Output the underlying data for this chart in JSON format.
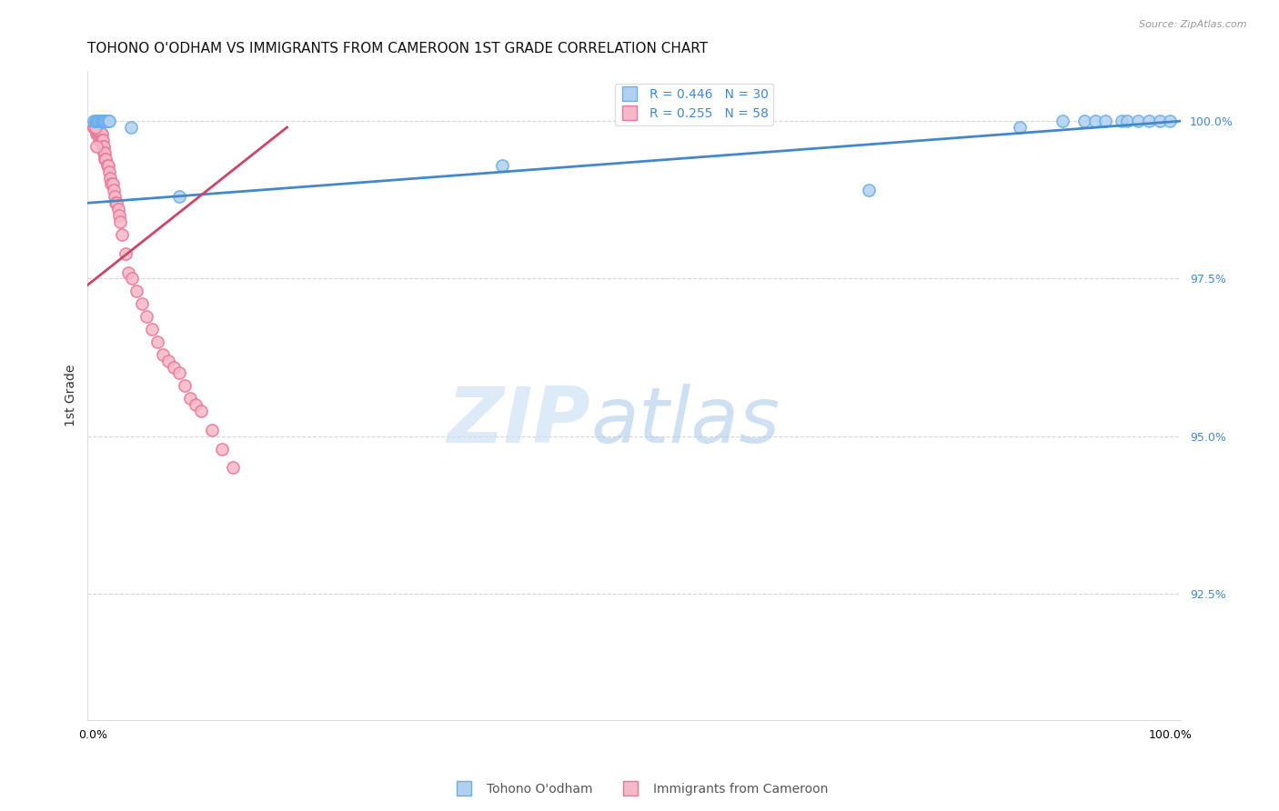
{
  "title": "TOHONO O'ODHAM VS IMMIGRANTS FROM CAMEROON 1ST GRADE CORRELATION CHART",
  "source": "Source: ZipAtlas.com",
  "ylabel": "1st Grade",
  "ymin": 0.905,
  "ymax": 1.008,
  "xmin": -0.005,
  "xmax": 1.01,
  "ytick_positions": [
    0.925,
    0.95,
    0.975,
    1.0
  ],
  "ytick_labels": [
    "92.5%",
    "95.0%",
    "97.5%",
    "100.0%"
  ],
  "blue_R": 0.446,
  "blue_N": 30,
  "pink_R": 0.255,
  "pink_N": 58,
  "legend_label_blue": "R = 0.446   N = 30",
  "legend_label_pink": "R = 0.255   N = 58",
  "legend_label_scatter_blue": "Tohono O'odham",
  "legend_label_scatter_pink": "Immigrants from Cameroon",
  "blue_scatter_color": "#b0d0f0",
  "blue_scatter_edge": "#6aaee8",
  "pink_scatter_color": "#f5b8c8",
  "pink_scatter_edge": "#e87898",
  "blue_line_color": "#4488cc",
  "pink_line_color": "#cc4466",
  "grid_color": "#cccccc",
  "blue_line_x0": -0.005,
  "blue_line_y0": 0.987,
  "blue_line_x1": 1.01,
  "blue_line_y1": 1.0,
  "pink_line_x0": -0.005,
  "pink_line_y0": 0.974,
  "pink_line_x1": 0.18,
  "pink_line_y1": 0.999,
  "blue_x": [
    0.001,
    0.002,
    0.003,
    0.004,
    0.005,
    0.006,
    0.007,
    0.008,
    0.009,
    0.01,
    0.011,
    0.012,
    0.013,
    0.014,
    0.015,
    0.035,
    0.08,
    0.38,
    0.72,
    0.86,
    0.9,
    0.92,
    0.93,
    0.94,
    0.955,
    0.96,
    0.97,
    0.98,
    0.99,
    1.0
  ],
  "blue_y": [
    1.0,
    1.0,
    1.0,
    1.0,
    1.0,
    1.0,
    1.0,
    1.0,
    1.0,
    1.0,
    1.0,
    1.0,
    1.0,
    1.0,
    1.0,
    0.999,
    0.988,
    0.993,
    0.989,
    0.999,
    1.0,
    1.0,
    1.0,
    1.0,
    1.0,
    1.0,
    1.0,
    1.0,
    1.0,
    1.0
  ],
  "pink_x": [
    0.001,
    0.002,
    0.003,
    0.003,
    0.004,
    0.004,
    0.005,
    0.005,
    0.006,
    0.006,
    0.007,
    0.007,
    0.008,
    0.008,
    0.008,
    0.009,
    0.009,
    0.01,
    0.01,
    0.011,
    0.011,
    0.012,
    0.013,
    0.014,
    0.015,
    0.016,
    0.017,
    0.018,
    0.019,
    0.02,
    0.021,
    0.022,
    0.023,
    0.024,
    0.025,
    0.027,
    0.03,
    0.033,
    0.036,
    0.04,
    0.045,
    0.05,
    0.055,
    0.06,
    0.065,
    0.07,
    0.075,
    0.08,
    0.085,
    0.09,
    0.095,
    0.1,
    0.11,
    0.12,
    0.13,
    0.001,
    0.002,
    0.003
  ],
  "pink_y": [
    0.999,
    0.999,
    0.999,
    0.998,
    0.999,
    0.998,
    0.999,
    0.998,
    0.998,
    0.997,
    0.998,
    0.997,
    0.998,
    0.997,
    0.997,
    0.997,
    0.996,
    0.996,
    0.995,
    0.995,
    0.994,
    0.994,
    0.993,
    0.993,
    0.992,
    0.991,
    0.99,
    0.99,
    0.989,
    0.988,
    0.987,
    0.987,
    0.986,
    0.985,
    0.984,
    0.982,
    0.979,
    0.976,
    0.975,
    0.973,
    0.971,
    0.969,
    0.967,
    0.965,
    0.963,
    0.962,
    0.961,
    0.96,
    0.958,
    0.956,
    0.955,
    0.954,
    0.951,
    0.948,
    0.945,
    0.999,
    0.999,
    0.996
  ],
  "title_fontsize": 11,
  "tick_fontsize": 9,
  "legend_fontsize": 10
}
